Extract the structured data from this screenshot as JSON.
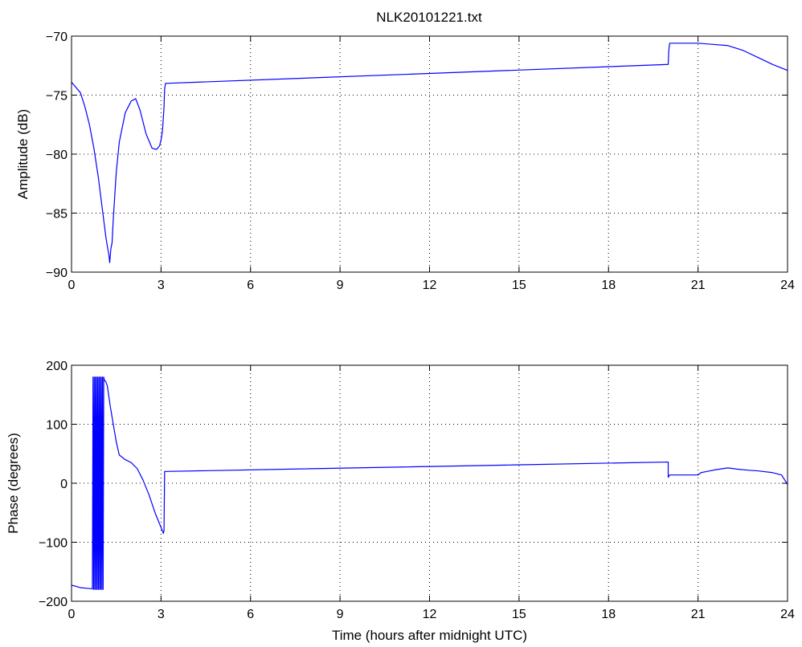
{
  "figure": {
    "title": "NLK20101221.txt"
  },
  "colors": {
    "series": "#0000ff",
    "axes": "#000000",
    "background": "#ffffff"
  },
  "chart_data": [
    {
      "type": "line",
      "title": "NLK20101221.txt",
      "xlabel": "",
      "ylabel": "Amplitude (dB)",
      "xlim": [
        0,
        24
      ],
      "ylim": [
        -90,
        -70
      ],
      "xticks": [
        0,
        3,
        6,
        9,
        12,
        15,
        18,
        21,
        24
      ],
      "yticks": [
        -90,
        -85,
        -80,
        -75,
        -70
      ],
      "xtick_labels": [
        "0",
        "3",
        "6",
        "9",
        "12",
        "15",
        "18",
        "21",
        "24"
      ],
      "ytick_labels": [
        "−90",
        "−85",
        "−80",
        "−75",
        "−70"
      ],
      "grid": true,
      "series": [
        {
          "x": [
            0,
            0.1,
            0.3,
            0.45,
            0.6,
            0.75,
            0.9,
            1.0,
            1.1,
            1.15,
            1.2,
            1.25,
            1.28,
            1.32,
            1.36,
            1.4,
            1.5,
            1.6,
            1.8,
            2.0,
            2.15,
            2.3,
            2.5,
            2.7,
            2.85,
            2.95,
            3.0,
            3.05,
            3.1,
            3.12,
            3.15,
            3.2,
            20.0,
            20.02,
            20.05,
            21.0,
            21.5,
            22.0,
            22.5,
            23.0,
            23.5,
            24.0
          ],
          "y": [
            -73.9,
            -74.2,
            -74.8,
            -76.0,
            -77.5,
            -79.5,
            -82.0,
            -84.0,
            -86.0,
            -87.0,
            -87.8,
            -88.5,
            -89.2,
            -88.0,
            -87.5,
            -85.5,
            -81.5,
            -79.0,
            -76.5,
            -75.5,
            -75.3,
            -76.3,
            -78.3,
            -79.5,
            -79.6,
            -79.3,
            -78.8,
            -78.0,
            -76.0,
            -74.5,
            -74.0,
            -74.0,
            -72.4,
            -71.2,
            -70.6,
            -70.6,
            -70.7,
            -70.8,
            -71.2,
            -71.8,
            -72.4,
            -72.9
          ]
        }
      ]
    },
    {
      "type": "line",
      "title": "",
      "xlabel": "Time (hours after midnight UTC)",
      "ylabel": "Phase (degrees)",
      "xlim": [
        0,
        24
      ],
      "ylim": [
        -200,
        200
      ],
      "xticks": [
        0,
        3,
        6,
        9,
        12,
        15,
        18,
        21,
        24
      ],
      "yticks": [
        -200,
        -100,
        0,
        100,
        200
      ],
      "xtick_labels": [
        "0",
        "3",
        "6",
        "9",
        "12",
        "15",
        "18",
        "21",
        "24"
      ],
      "ytick_labels": [
        "−200",
        "−100",
        "0",
        "100",
        "200"
      ],
      "grid": true,
      "series": [
        {
          "x": [
            0,
            0.1,
            0.3,
            0.5,
            0.7,
            0.72,
            0.74,
            0.76,
            0.78,
            0.8,
            0.82,
            0.84,
            0.86,
            0.88,
            0.9,
            0.92,
            0.94,
            0.96,
            0.98,
            1.0,
            1.02,
            1.04,
            1.06,
            1.08,
            1.1,
            1.15,
            1.2,
            1.3,
            1.4,
            1.5,
            1.6,
            1.8,
            2.0,
            2.2,
            2.4,
            2.6,
            2.8,
            3.0,
            3.08,
            3.1,
            3.12,
            3.2,
            20.0,
            20.0,
            20.05,
            20.1,
            21.0,
            21.1,
            21.3,
            21.6,
            22.0,
            22.3,
            22.7,
            23.0,
            23.5,
            23.8,
            24.0
          ],
          "y": [
            -173,
            -174,
            -177,
            -178,
            -179,
            180,
            -180,
            180,
            -180,
            180,
            -180,
            180,
            -180,
            180,
            -180,
            180,
            -180,
            180,
            -180,
            180,
            -180,
            180,
            -180,
            180,
            175,
            172,
            165,
            130,
            100,
            70,
            48,
            40,
            35,
            25,
            5,
            -20,
            -50,
            -75,
            -85,
            -80,
            20,
            20,
            36,
            10,
            14,
            14,
            14,
            18,
            20,
            23,
            26,
            24,
            22,
            21,
            18,
            14,
            -2
          ]
        }
      ]
    }
  ]
}
